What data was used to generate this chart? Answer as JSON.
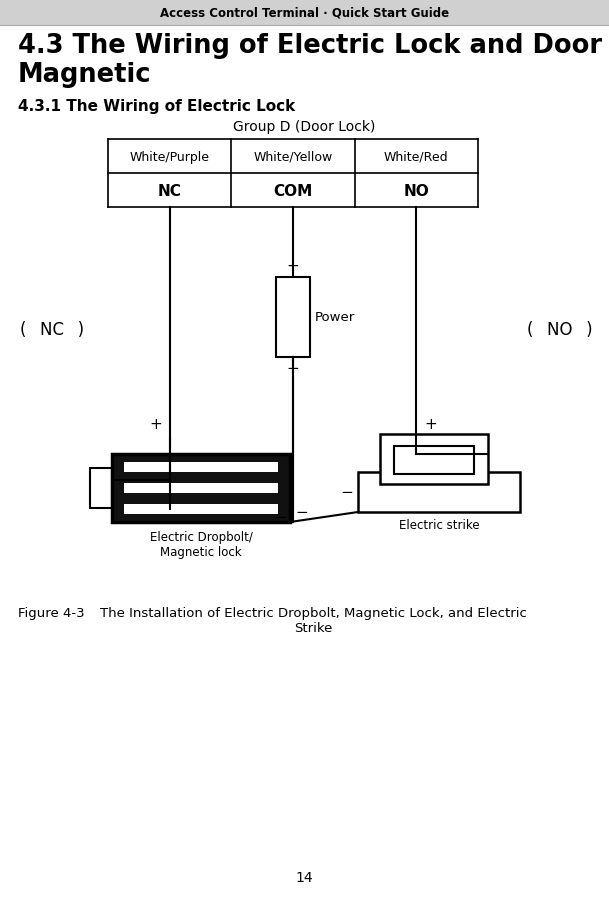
{
  "header_text": "Access Control Terminal · Quick Start Guide",
  "header_bg": "#d0d0d0",
  "title_line1": "4.3 The Wiring of Electric Lock and Door",
  "title_line2": "Magnetic",
  "subtitle": "4.3.1 The Wiring of Electric Lock",
  "diagram_title": "Group D (Door Lock)",
  "table_headers": [
    "White/Purple",
    "White/Yellow",
    "White/Red"
  ],
  "table_rows": [
    "NC",
    "COM",
    "NO"
  ],
  "nc_label": "(  NC  )",
  "no_label": "(  NO  )",
  "power_label": "Power",
  "power_plus": "+",
  "power_minus": "−",
  "nc_plus": "+",
  "no_plus": "+",
  "dropbolt_minus": "−",
  "com_minus": "−",
  "es_minus": "−",
  "label_dropbolt": "Electric Dropbolt/\nMagnetic lock",
  "label_strike": "Electric strike",
  "figure_caption_left": "Figure 4-3",
  "figure_caption_right": "The Installation of Electric Dropbolt, Magnetic Lock, and Electric\nStrike",
  "page_number": "14",
  "bg_color": "#ffffff",
  "line_color": "#000000",
  "text_color": "#000000"
}
